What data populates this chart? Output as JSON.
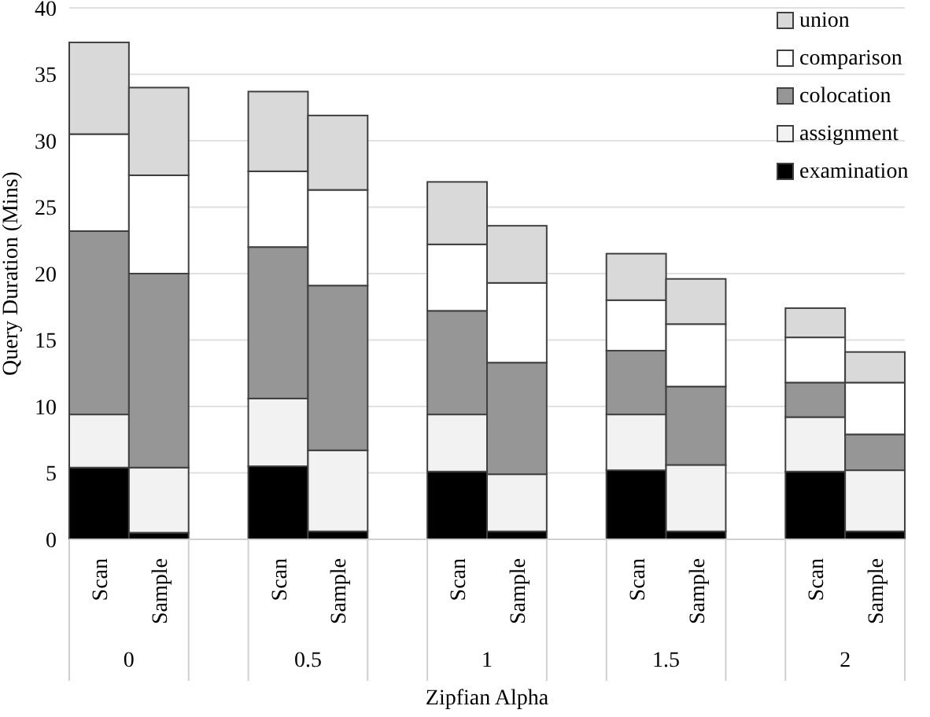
{
  "chart_data": {
    "type": "bar",
    "stacked": true,
    "ylabel": "Query Duration (Mins)",
    "xlabel": "Zipfian Alpha",
    "categories": [
      "Scan",
      "Sample",
      "Scan",
      "Sample",
      "Scan",
      "Sample",
      "Scan",
      "Sample",
      "Scan",
      "Sample"
    ],
    "annotations": [
      "0",
      "0.5",
      "1",
      "1.5",
      "2"
    ],
    "series": [
      {
        "name": "examination",
        "color": "#000000",
        "values": [
          5.4,
          0.5,
          5.5,
          0.6,
          5.1,
          0.6,
          5.2,
          0.6,
          5.1,
          0.6
        ]
      },
      {
        "name": "assignment",
        "color": "#f2f2f2",
        "values": [
          4.0,
          4.9,
          5.1,
          6.1,
          4.3,
          4.3,
          4.2,
          5.0,
          4.1,
          4.6
        ]
      },
      {
        "name": "colocation",
        "color": "#969696",
        "values": [
          13.8,
          14.6,
          11.4,
          12.4,
          7.8,
          8.4,
          4.8,
          5.9,
          2.6,
          2.7
        ]
      },
      {
        "name": "comparison",
        "color": "#ffffff",
        "values": [
          7.3,
          7.4,
          5.7,
          7.2,
          5.0,
          6.0,
          3.8,
          4.7,
          3.4,
          3.9
        ]
      },
      {
        "name": "union",
        "color": "#d9d9d9",
        "values": [
          6.9,
          6.6,
          6.0,
          5.6,
          4.7,
          4.3,
          3.5,
          3.4,
          2.2,
          2.3
        ]
      }
    ],
    "ylim": [
      0,
      40
    ],
    "yticks": [
      0,
      5,
      10,
      15,
      20,
      25,
      30,
      35,
      40
    ],
    "grid": "y",
    "legend": "top right"
  }
}
